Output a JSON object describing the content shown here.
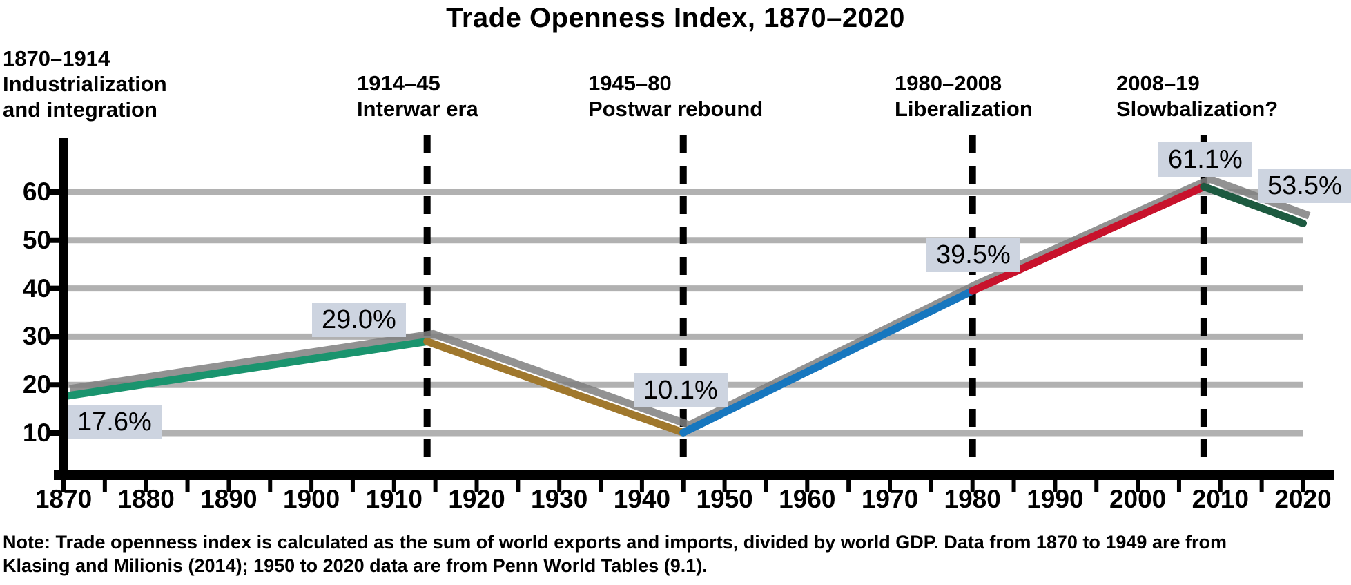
{
  "title": "Trade Openness Index, 1870–2020",
  "phases": [
    {
      "period": "1870–1914",
      "name_lines": [
        "Industrialization",
        "and integration"
      ]
    },
    {
      "period": "1914–45",
      "name_lines": [
        "Interwar era"
      ]
    },
    {
      "period": "1945–80",
      "name_lines": [
        "Postwar rebound"
      ]
    },
    {
      "period": "1980–2008",
      "name_lines": [
        "Liberalization"
      ]
    },
    {
      "period": "2008–19",
      "name_lines": [
        "Slowbalization?"
      ]
    }
  ],
  "chart_data": {
    "type": "line",
    "title": "Trade Openness Index, 1870–2020",
    "x": [
      1870,
      1914,
      1945,
      1980,
      2008,
      2020
    ],
    "values": [
      17.6,
      29.0,
      10.1,
      39.5,
      61.1,
      53.5
    ],
    "point_labels": [
      "17.6%",
      "29.0%",
      "10.1%",
      "39.5%",
      "61.1%",
      "53.5%"
    ],
    "segments": [
      {
        "from_year": 1870,
        "to_year": 1914,
        "color": "#1a946e",
        "phase": "Industrialization and integration"
      },
      {
        "from_year": 1914,
        "to_year": 1945,
        "color": "#a0782d",
        "phase": "Interwar era"
      },
      {
        "from_year": 1945,
        "to_year": 1980,
        "color": "#1777bf",
        "phase": "Postwar rebound"
      },
      {
        "from_year": 1980,
        "to_year": 2008,
        "color": "#c8122c",
        "phase": "Liberalization"
      },
      {
        "from_year": 2008,
        "to_year": 2020,
        "color": "#1d5a40",
        "phase": "Slowbalization?"
      }
    ],
    "dashed_boundary_years": [
      1914,
      1945,
      1980,
      2008
    ],
    "x_axis_labels": [
      1870,
      1880,
      1890,
      1900,
      1910,
      1920,
      1930,
      1940,
      1950,
      1960,
      1970,
      1980,
      1990,
      2000,
      2010,
      2020
    ],
    "x_minor_tick_step_years": 5,
    "y_ticks": [
      10,
      20,
      30,
      40,
      50,
      60
    ],
    "x_range": [
      1870,
      2020
    ],
    "y_range": [
      0,
      70
    ],
    "grid": "horizontal",
    "legend": "none"
  },
  "note_lines": [
    "Note: Trade openness index is calculated as the sum of world exports and imports, divided by world GDP. Data from 1870 to 1949 are from",
    "Klasing and Milionis (2014); 1950 to 2020 data are from Penn World Tables (9.1)."
  ],
  "colors": {
    "grid": "#b1b1b1",
    "axis": "#000000",
    "dashed_divider": "#000000",
    "label_background": "#cdd4e0",
    "line_shadow": "#7f7f7f"
  }
}
